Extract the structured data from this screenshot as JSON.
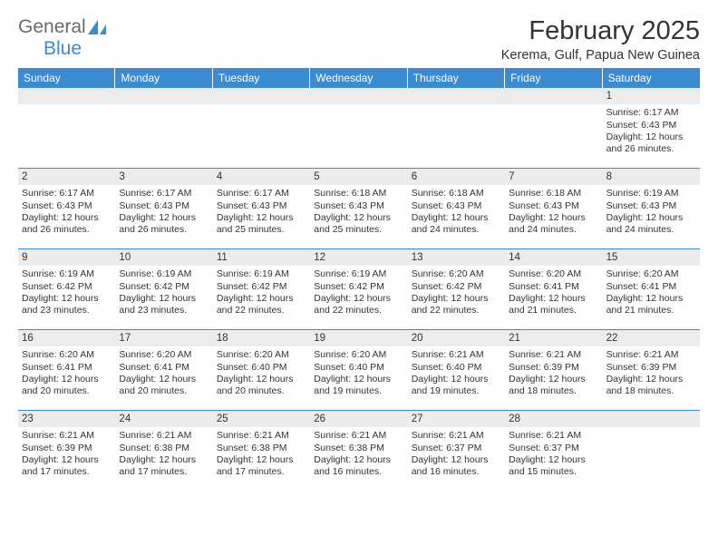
{
  "brand": {
    "part1": "General",
    "part2": "Blue"
  },
  "title": "February 2025",
  "location": "Kerema, Gulf, Papua New Guinea",
  "colors": {
    "header_bar": "#3b8bd0",
    "daynum_bg": "#ececec",
    "text": "#333333",
    "logo_gray": "#6a6a6a",
    "logo_blue": "#3b8bd0"
  },
  "daysOfWeek": [
    "Sunday",
    "Monday",
    "Tuesday",
    "Wednesday",
    "Thursday",
    "Friday",
    "Saturday"
  ],
  "weeks": [
    [
      {
        "n": "",
        "sunrise": "",
        "sunset": "",
        "daylight": ""
      },
      {
        "n": "",
        "sunrise": "",
        "sunset": "",
        "daylight": ""
      },
      {
        "n": "",
        "sunrise": "",
        "sunset": "",
        "daylight": ""
      },
      {
        "n": "",
        "sunrise": "",
        "sunset": "",
        "daylight": ""
      },
      {
        "n": "",
        "sunrise": "",
        "sunset": "",
        "daylight": ""
      },
      {
        "n": "",
        "sunrise": "",
        "sunset": "",
        "daylight": ""
      },
      {
        "n": "1",
        "sunrise": "Sunrise: 6:17 AM",
        "sunset": "Sunset: 6:43 PM",
        "daylight": "Daylight: 12 hours and 26 minutes."
      }
    ],
    [
      {
        "n": "2",
        "sunrise": "Sunrise: 6:17 AM",
        "sunset": "Sunset: 6:43 PM",
        "daylight": "Daylight: 12 hours and 26 minutes."
      },
      {
        "n": "3",
        "sunrise": "Sunrise: 6:17 AM",
        "sunset": "Sunset: 6:43 PM",
        "daylight": "Daylight: 12 hours and 26 minutes."
      },
      {
        "n": "4",
        "sunrise": "Sunrise: 6:17 AM",
        "sunset": "Sunset: 6:43 PM",
        "daylight": "Daylight: 12 hours and 25 minutes."
      },
      {
        "n": "5",
        "sunrise": "Sunrise: 6:18 AM",
        "sunset": "Sunset: 6:43 PM",
        "daylight": "Daylight: 12 hours and 25 minutes."
      },
      {
        "n": "6",
        "sunrise": "Sunrise: 6:18 AM",
        "sunset": "Sunset: 6:43 PM",
        "daylight": "Daylight: 12 hours and 24 minutes."
      },
      {
        "n": "7",
        "sunrise": "Sunrise: 6:18 AM",
        "sunset": "Sunset: 6:43 PM",
        "daylight": "Daylight: 12 hours and 24 minutes."
      },
      {
        "n": "8",
        "sunrise": "Sunrise: 6:19 AM",
        "sunset": "Sunset: 6:43 PM",
        "daylight": "Daylight: 12 hours and 24 minutes."
      }
    ],
    [
      {
        "n": "9",
        "sunrise": "Sunrise: 6:19 AM",
        "sunset": "Sunset: 6:42 PM",
        "daylight": "Daylight: 12 hours and 23 minutes."
      },
      {
        "n": "10",
        "sunrise": "Sunrise: 6:19 AM",
        "sunset": "Sunset: 6:42 PM",
        "daylight": "Daylight: 12 hours and 23 minutes."
      },
      {
        "n": "11",
        "sunrise": "Sunrise: 6:19 AM",
        "sunset": "Sunset: 6:42 PM",
        "daylight": "Daylight: 12 hours and 22 minutes."
      },
      {
        "n": "12",
        "sunrise": "Sunrise: 6:19 AM",
        "sunset": "Sunset: 6:42 PM",
        "daylight": "Daylight: 12 hours and 22 minutes."
      },
      {
        "n": "13",
        "sunrise": "Sunrise: 6:20 AM",
        "sunset": "Sunset: 6:42 PM",
        "daylight": "Daylight: 12 hours and 22 minutes."
      },
      {
        "n": "14",
        "sunrise": "Sunrise: 6:20 AM",
        "sunset": "Sunset: 6:41 PM",
        "daylight": "Daylight: 12 hours and 21 minutes."
      },
      {
        "n": "15",
        "sunrise": "Sunrise: 6:20 AM",
        "sunset": "Sunset: 6:41 PM",
        "daylight": "Daylight: 12 hours and 21 minutes."
      }
    ],
    [
      {
        "n": "16",
        "sunrise": "Sunrise: 6:20 AM",
        "sunset": "Sunset: 6:41 PM",
        "daylight": "Daylight: 12 hours and 20 minutes."
      },
      {
        "n": "17",
        "sunrise": "Sunrise: 6:20 AM",
        "sunset": "Sunset: 6:41 PM",
        "daylight": "Daylight: 12 hours and 20 minutes."
      },
      {
        "n": "18",
        "sunrise": "Sunrise: 6:20 AM",
        "sunset": "Sunset: 6:40 PM",
        "daylight": "Daylight: 12 hours and 20 minutes."
      },
      {
        "n": "19",
        "sunrise": "Sunrise: 6:20 AM",
        "sunset": "Sunset: 6:40 PM",
        "daylight": "Daylight: 12 hours and 19 minutes."
      },
      {
        "n": "20",
        "sunrise": "Sunrise: 6:21 AM",
        "sunset": "Sunset: 6:40 PM",
        "daylight": "Daylight: 12 hours and 19 minutes."
      },
      {
        "n": "21",
        "sunrise": "Sunrise: 6:21 AM",
        "sunset": "Sunset: 6:39 PM",
        "daylight": "Daylight: 12 hours and 18 minutes."
      },
      {
        "n": "22",
        "sunrise": "Sunrise: 6:21 AM",
        "sunset": "Sunset: 6:39 PM",
        "daylight": "Daylight: 12 hours and 18 minutes."
      }
    ],
    [
      {
        "n": "23",
        "sunrise": "Sunrise: 6:21 AM",
        "sunset": "Sunset: 6:39 PM",
        "daylight": "Daylight: 12 hours and 17 minutes."
      },
      {
        "n": "24",
        "sunrise": "Sunrise: 6:21 AM",
        "sunset": "Sunset: 6:38 PM",
        "daylight": "Daylight: 12 hours and 17 minutes."
      },
      {
        "n": "25",
        "sunrise": "Sunrise: 6:21 AM",
        "sunset": "Sunset: 6:38 PM",
        "daylight": "Daylight: 12 hours and 17 minutes."
      },
      {
        "n": "26",
        "sunrise": "Sunrise: 6:21 AM",
        "sunset": "Sunset: 6:38 PM",
        "daylight": "Daylight: 12 hours and 16 minutes."
      },
      {
        "n": "27",
        "sunrise": "Sunrise: 6:21 AM",
        "sunset": "Sunset: 6:37 PM",
        "daylight": "Daylight: 12 hours and 16 minutes."
      },
      {
        "n": "28",
        "sunrise": "Sunrise: 6:21 AM",
        "sunset": "Sunset: 6:37 PM",
        "daylight": "Daylight: 12 hours and 15 minutes."
      },
      {
        "n": "",
        "sunrise": "",
        "sunset": "",
        "daylight": ""
      }
    ]
  ]
}
